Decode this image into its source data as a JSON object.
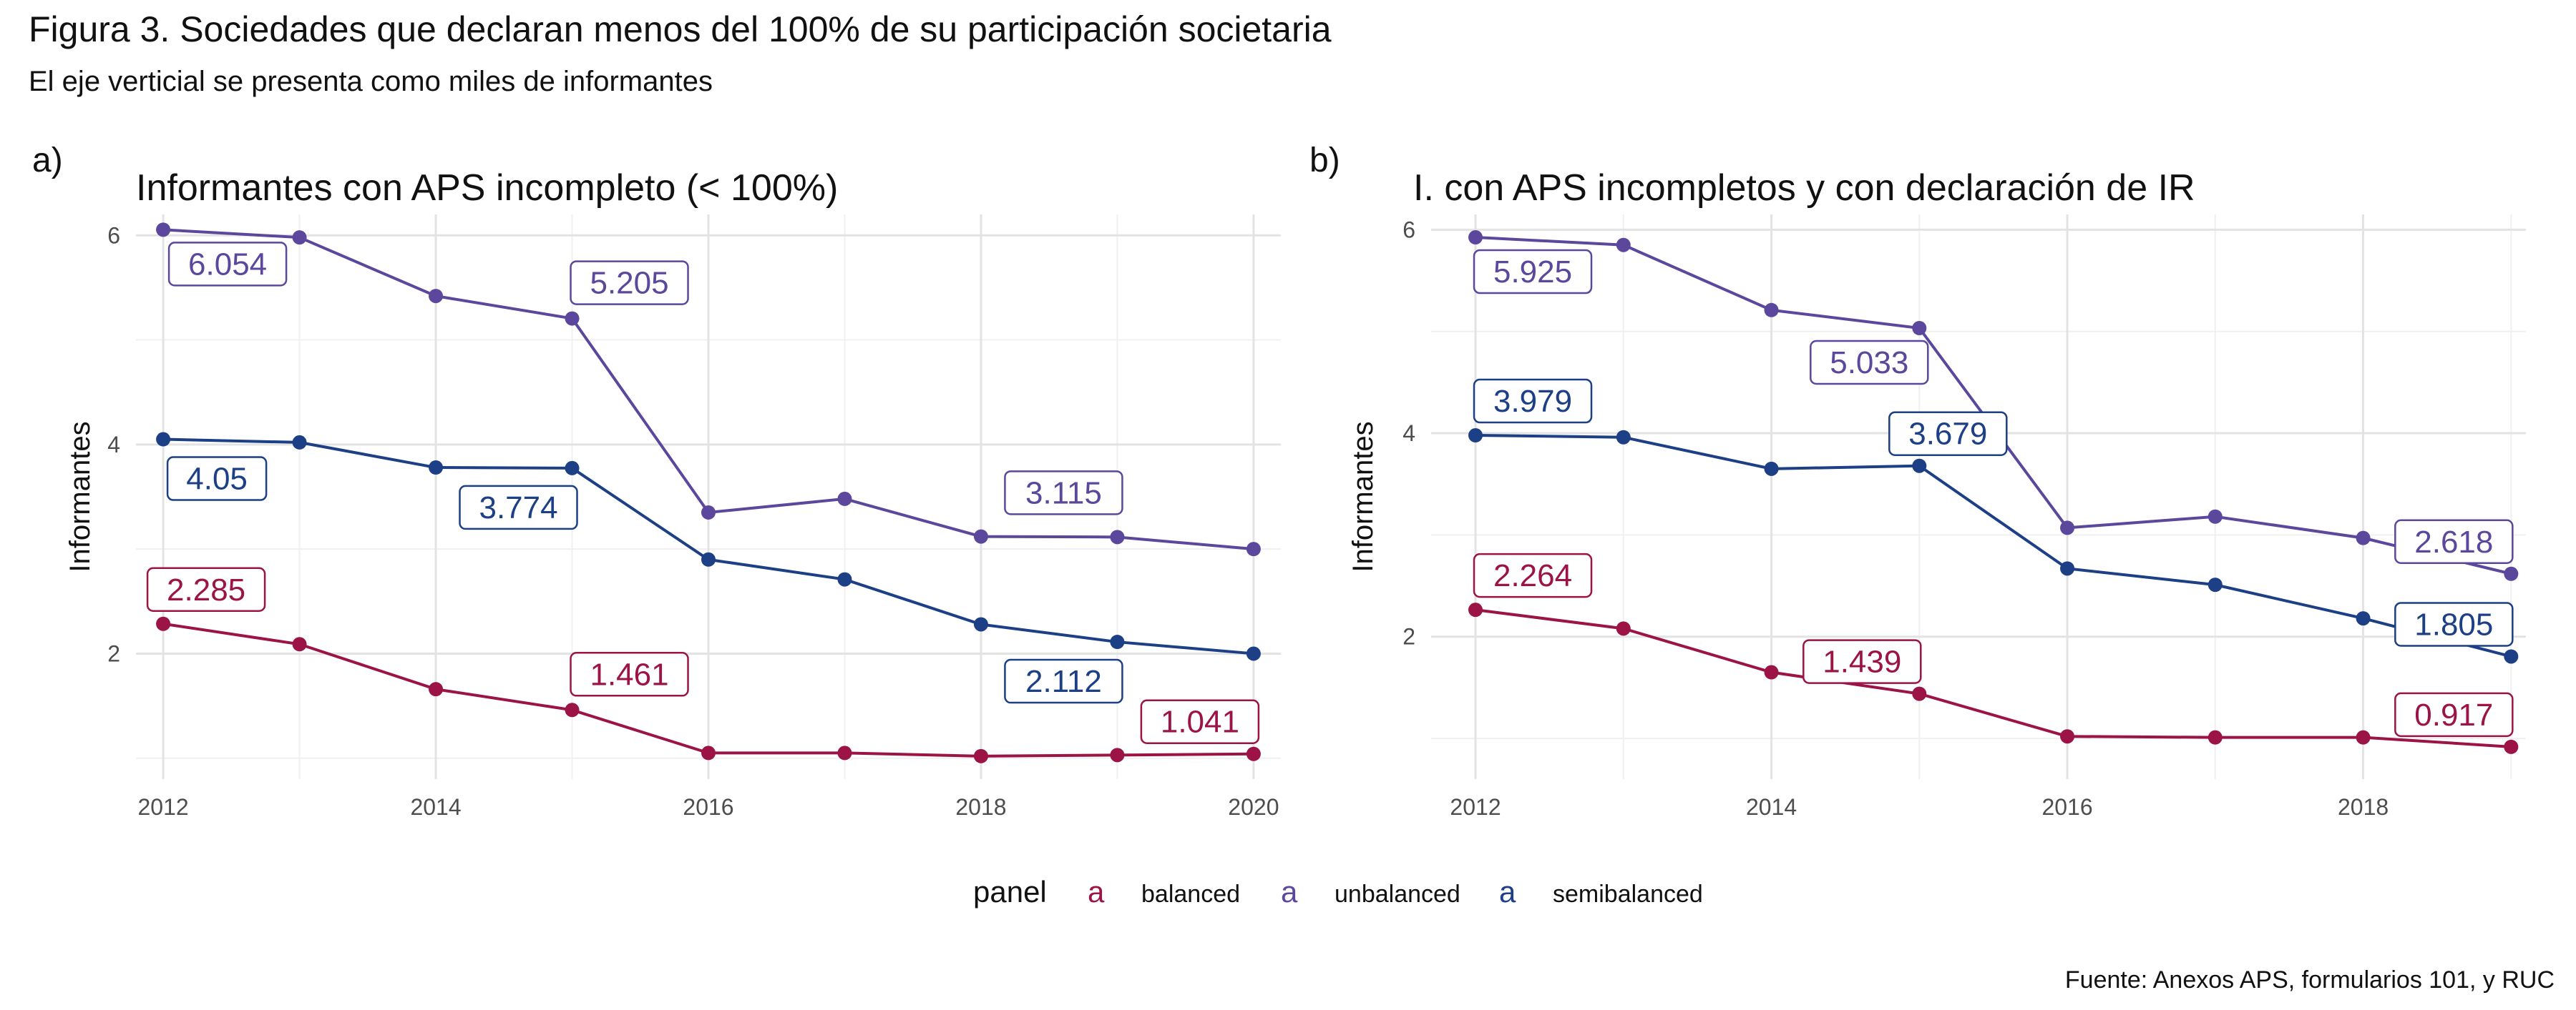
{
  "figure": {
    "title": "Figura 3. Sociedades que declaran menos del 100% de su participación societaria",
    "subtitle": "El eje verticial se presenta como miles de informantes",
    "caption": "Fuente: Anexos APS, formularios 101, y RUC"
  },
  "colors": {
    "balanced": "#9b1445",
    "unbalanced": "#5b479c",
    "semibalanced": "#1c3f86"
  },
  "legend": {
    "title": "panel",
    "key_glyph": "a",
    "entries": [
      {
        "key": "balanced",
        "label": "balanced"
      },
      {
        "key": "unbalanced",
        "label": "unbalanced"
      },
      {
        "key": "semibalanced",
        "label": "semibalanced"
      }
    ]
  },
  "chart_data": [
    {
      "type": "line",
      "tag": "a)",
      "title": "Informantes con APS incompleto (< 100%)",
      "ylabel": "Informantes",
      "xlabel": "",
      "xlim": [
        2011.8,
        2020.2
      ],
      "ylim": [
        0.8,
        6.2
      ],
      "xticks": [
        2012,
        2014,
        2016,
        2018,
        2020
      ],
      "yticks": [
        2,
        4,
        6
      ],
      "grid": true,
      "series": [
        {
          "name": "unbalanced",
          "x": [
            2012,
            2013,
            2014,
            2015,
            2016,
            2017,
            2018,
            2019,
            2020
          ],
          "values": [
            6.054,
            5.98,
            5.42,
            5.205,
            3.35,
            3.48,
            3.12,
            3.115,
            3.0
          ]
        },
        {
          "name": "semibalanced",
          "x": [
            2012,
            2013,
            2014,
            2015,
            2016,
            2017,
            2018,
            2019,
            2020
          ],
          "values": [
            4.05,
            4.02,
            3.78,
            3.774,
            2.9,
            2.71,
            2.28,
            2.112,
            2.0
          ]
        },
        {
          "name": "balanced",
          "x": [
            2012,
            2013,
            2014,
            2015,
            2016,
            2017,
            2018,
            2019,
            2020
          ],
          "values": [
            2.285,
            2.09,
            1.66,
            1.461,
            1.05,
            1.05,
            1.02,
            1.03,
            1.041
          ]
        }
      ],
      "labels": [
        {
          "series": "unbalanced",
          "text": "6.054"
        },
        {
          "series": "unbalanced",
          "text": "5.205"
        },
        {
          "series": "unbalanced",
          "text": "3.115"
        },
        {
          "series": "semibalanced",
          "text": "4.05"
        },
        {
          "series": "semibalanced",
          "text": "3.774"
        },
        {
          "series": "semibalanced",
          "text": "2.112"
        },
        {
          "series": "balanced",
          "text": "2.285"
        },
        {
          "series": "balanced",
          "text": "1.461"
        },
        {
          "series": "balanced",
          "text": "1.041"
        }
      ]
    },
    {
      "type": "line",
      "tag": "b)",
      "title": "I. con APS incompletos y con declaración de IR",
      "ylabel": "Informantes",
      "xlabel": "",
      "xlim": [
        2011.7,
        2019.1
      ],
      "ylim": [
        0.6,
        6.15
      ],
      "xticks": [
        2012,
        2014,
        2016,
        2018
      ],
      "yticks": [
        2,
        4,
        6
      ],
      "grid": true,
      "series": [
        {
          "name": "unbalanced",
          "x": [
            2012,
            2013,
            2014,
            2015,
            2016,
            2017,
            2018,
            2019
          ],
          "values": [
            5.925,
            5.85,
            5.21,
            5.033,
            3.07,
            3.18,
            2.97,
            2.618
          ]
        },
        {
          "name": "semibalanced",
          "x": [
            2012,
            2013,
            2014,
            2015,
            2016,
            2017,
            2018,
            2019
          ],
          "values": [
            3.979,
            3.96,
            3.65,
            3.679,
            2.67,
            2.51,
            2.18,
            1.805
          ]
        },
        {
          "name": "balanced",
          "x": [
            2012,
            2013,
            2014,
            2015,
            2016,
            2017,
            2018,
            2019
          ],
          "values": [
            2.264,
            2.08,
            1.65,
            1.439,
            1.02,
            1.01,
            1.01,
            0.917
          ]
        }
      ],
      "labels": [
        {
          "series": "unbalanced",
          "text": "5.925"
        },
        {
          "series": "unbalanced",
          "text": "5.033"
        },
        {
          "series": "unbalanced",
          "text": "2.618"
        },
        {
          "series": "semibalanced",
          "text": "3.979"
        },
        {
          "series": "semibalanced",
          "text": "3.679"
        },
        {
          "series": "semibalanced",
          "text": "1.805"
        },
        {
          "series": "balanced",
          "text": "2.264"
        },
        {
          "series": "balanced",
          "text": "1.439"
        },
        {
          "series": "balanced",
          "text": "0.917"
        }
      ]
    }
  ]
}
